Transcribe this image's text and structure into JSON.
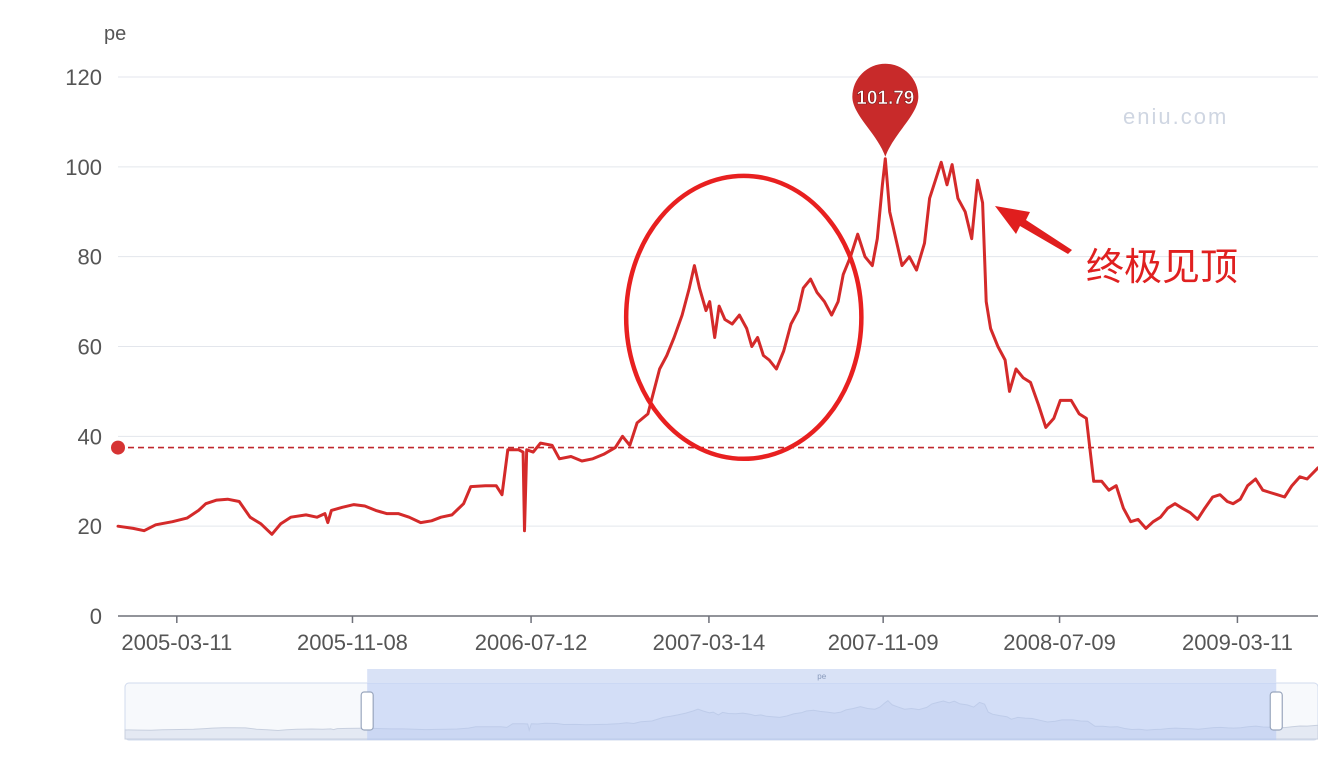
{
  "chart_data": {
    "type": "line",
    "ylabel": "pe",
    "ylim": [
      0,
      120
    ],
    "yticks": [
      0,
      20,
      40,
      60,
      80,
      100,
      120
    ],
    "grid": true,
    "xticks": [
      "2005-03-11",
      "2005-11-08",
      "2006-07-12",
      "2007-03-14",
      "2007-11-09",
      "2008-07-09",
      "2009-03-11"
    ],
    "x_range": [
      "2004-12-20",
      "2009-06-30"
    ],
    "series": [
      {
        "color": "#d42a2a",
        "points": [
          [
            "2004-12-20",
            20.0
          ],
          [
            "2005-01-10",
            19.5
          ],
          [
            "2005-01-25",
            19.0
          ],
          [
            "2005-02-10",
            20.3
          ],
          [
            "2005-03-05",
            21.0
          ],
          [
            "2005-03-25",
            21.8
          ],
          [
            "2005-04-10",
            23.5
          ],
          [
            "2005-04-20",
            25.0
          ],
          [
            "2005-05-05",
            25.8
          ],
          [
            "2005-05-20",
            26.0
          ],
          [
            "2005-06-05",
            25.5
          ],
          [
            "2005-06-20",
            22.0
          ],
          [
            "2005-07-05",
            20.5
          ],
          [
            "2005-07-20",
            18.2
          ],
          [
            "2005-08-01",
            20.5
          ],
          [
            "2005-08-15",
            22.0
          ],
          [
            "2005-09-05",
            22.5
          ],
          [
            "2005-09-20",
            22.0
          ],
          [
            "2005-10-01",
            22.8
          ],
          [
            "2005-10-05",
            20.8
          ],
          [
            "2005-10-10",
            23.5
          ],
          [
            "2005-10-25",
            24.2
          ],
          [
            "2005-11-10",
            24.8
          ],
          [
            "2005-11-25",
            24.5
          ],
          [
            "2005-12-10",
            23.5
          ],
          [
            "2005-12-25",
            22.8
          ],
          [
            "2006-01-10",
            22.8
          ],
          [
            "2006-01-25",
            22.0
          ],
          [
            "2006-02-10",
            20.8
          ],
          [
            "2006-02-25",
            21.2
          ],
          [
            "2006-03-10",
            22.0
          ],
          [
            "2006-03-25",
            22.5
          ],
          [
            "2006-04-10",
            25.0
          ],
          [
            "2006-04-20",
            28.8
          ],
          [
            "2006-05-10",
            29.0
          ],
          [
            "2006-05-25",
            29.0
          ],
          [
            "2006-06-02",
            27.0
          ],
          [
            "2006-06-10",
            37.0
          ],
          [
            "2006-06-25",
            37.0
          ],
          [
            "2006-07-01",
            36.5
          ],
          [
            "2006-07-03",
            19.0
          ],
          [
            "2006-07-06",
            37.0
          ],
          [
            "2006-07-15",
            36.5
          ],
          [
            "2006-07-25",
            38.5
          ],
          [
            "2006-08-10",
            38.0
          ],
          [
            "2006-08-20",
            35.0
          ],
          [
            "2006-09-05",
            35.5
          ],
          [
            "2006-09-20",
            34.5
          ],
          [
            "2006-10-05",
            35.0
          ],
          [
            "2006-10-20",
            36.0
          ],
          [
            "2006-11-05",
            37.5
          ],
          [
            "2006-11-15",
            40.0
          ],
          [
            "2006-11-25",
            38.0
          ],
          [
            "2006-12-05",
            43.0
          ],
          [
            "2006-12-20",
            45.0
          ],
          [
            "2007-01-05",
            55.0
          ],
          [
            "2007-01-15",
            58.0
          ],
          [
            "2007-01-25",
            62.0
          ],
          [
            "2007-02-05",
            67.0
          ],
          [
            "2007-02-15",
            73.0
          ],
          [
            "2007-02-22",
            78.0
          ],
          [
            "2007-03-01",
            73.0
          ],
          [
            "2007-03-10",
            68.0
          ],
          [
            "2007-03-15",
            70.0
          ],
          [
            "2007-03-22",
            62.0
          ],
          [
            "2007-03-28",
            69.0
          ],
          [
            "2007-04-05",
            66.0
          ],
          [
            "2007-04-15",
            65.0
          ],
          [
            "2007-04-25",
            67.0
          ],
          [
            "2007-05-05",
            64.0
          ],
          [
            "2007-05-12",
            60.0
          ],
          [
            "2007-05-20",
            62.0
          ],
          [
            "2007-05-28",
            58.0
          ],
          [
            "2007-06-05",
            57.0
          ],
          [
            "2007-06-15",
            55.0
          ],
          [
            "2007-06-25",
            59.0
          ],
          [
            "2007-07-05",
            65.0
          ],
          [
            "2007-07-15",
            68.0
          ],
          [
            "2007-07-22",
            73.0
          ],
          [
            "2007-08-01",
            75.0
          ],
          [
            "2007-08-10",
            72.0
          ],
          [
            "2007-08-20",
            70.0
          ],
          [
            "2007-08-30",
            67.0
          ],
          [
            "2007-09-08",
            70.0
          ],
          [
            "2007-09-15",
            76.0
          ],
          [
            "2007-09-25",
            80.0
          ],
          [
            "2007-10-05",
            85.0
          ],
          [
            "2007-10-15",
            80.0
          ],
          [
            "2007-10-25",
            78.0
          ],
          [
            "2007-11-01",
            84.0
          ],
          [
            "2007-11-08",
            96.0
          ],
          [
            "2007-11-12",
            101.79
          ],
          [
            "2007-11-18",
            90.0
          ],
          [
            "2007-11-25",
            85.0
          ],
          [
            "2007-12-05",
            78.0
          ],
          [
            "2007-12-15",
            80.0
          ],
          [
            "2007-12-25",
            77.0
          ],
          [
            "2008-01-05",
            83.0
          ],
          [
            "2008-01-12",
            93.0
          ],
          [
            "2008-01-20",
            97.0
          ],
          [
            "2008-01-28",
            101.0
          ],
          [
            "2008-02-05",
            96.0
          ],
          [
            "2008-02-12",
            100.5
          ],
          [
            "2008-02-20",
            93.0
          ],
          [
            "2008-03-01",
            90.0
          ],
          [
            "2008-03-10",
            84.0
          ],
          [
            "2008-03-18",
            97.0
          ],
          [
            "2008-03-25",
            92.0
          ],
          [
            "2008-03-30",
            70.0
          ],
          [
            "2008-04-05",
            64.0
          ],
          [
            "2008-04-15",
            60.0
          ],
          [
            "2008-04-25",
            57.0
          ],
          [
            "2008-05-01",
            50.0
          ],
          [
            "2008-05-10",
            55.0
          ],
          [
            "2008-05-20",
            53.0
          ],
          [
            "2008-05-30",
            52.0
          ],
          [
            "2008-06-10",
            47.0
          ],
          [
            "2008-06-20",
            42.0
          ],
          [
            "2008-07-01",
            44.0
          ],
          [
            "2008-07-10",
            48.0
          ],
          [
            "2008-07-25",
            48.0
          ],
          [
            "2008-08-05",
            45.0
          ],
          [
            "2008-08-15",
            44.0
          ],
          [
            "2008-08-25",
            30.0
          ],
          [
            "2008-09-05",
            30.0
          ],
          [
            "2008-09-15",
            28.0
          ],
          [
            "2008-09-25",
            29.0
          ],
          [
            "2008-10-05",
            24.0
          ],
          [
            "2008-10-15",
            21.0
          ],
          [
            "2008-10-25",
            21.5
          ],
          [
            "2008-11-05",
            19.5
          ],
          [
            "2008-11-15",
            21.0
          ],
          [
            "2008-11-25",
            22.0
          ],
          [
            "2008-12-05",
            24.0
          ],
          [
            "2008-12-15",
            25.0
          ],
          [
            "2008-12-25",
            24.0
          ],
          [
            "2009-01-05",
            23.0
          ],
          [
            "2009-01-15",
            21.5
          ],
          [
            "2009-01-25",
            24.0
          ],
          [
            "2009-02-05",
            26.5
          ],
          [
            "2009-02-15",
            27.0
          ],
          [
            "2009-02-25",
            25.5
          ],
          [
            "2009-03-05",
            25.0
          ],
          [
            "2009-03-15",
            26.0
          ],
          [
            "2009-03-25",
            29.0
          ],
          [
            "2009-04-05",
            30.5
          ],
          [
            "2009-04-15",
            28.0
          ],
          [
            "2009-04-25",
            27.5
          ],
          [
            "2009-05-05",
            27.0
          ],
          [
            "2009-05-15",
            26.5
          ],
          [
            "2009-05-25",
            29.0
          ],
          [
            "2009-06-05",
            31.0
          ],
          [
            "2009-06-15",
            30.5
          ],
          [
            "2009-06-30",
            33.0
          ]
        ]
      }
    ],
    "reference_line": {
      "y": 37.5,
      "style": "dashed",
      "color": "#c0282e"
    },
    "max_marker": {
      "date": "2007-11-12",
      "value": "101.79",
      "color": "#c82a2a"
    },
    "annotations": {
      "circle": {
        "x_from": "2006-11-20",
        "x_to": "2007-10-10",
        "y_from": 35,
        "y_to": 98,
        "color": "#e82020"
      },
      "arrow": {
        "color": "#e01e1e"
      },
      "text": "终极见顶",
      "watermark": "eniu.com"
    },
    "data_zoom": {
      "label": "pe",
      "start_fraction": 0.203,
      "end_fraction": 0.965,
      "fill_color": "#b7c9f2"
    }
  }
}
